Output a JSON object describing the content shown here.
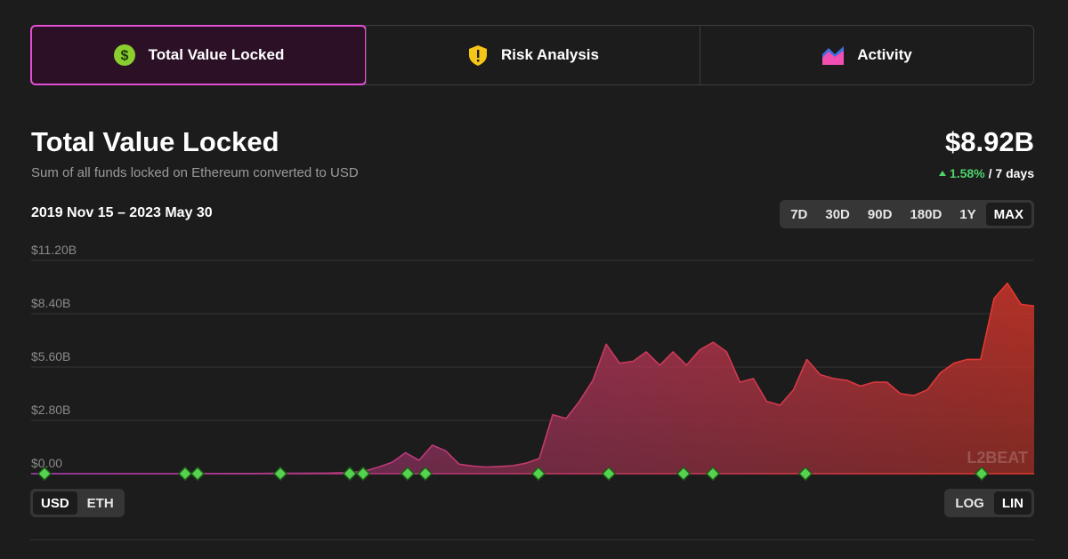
{
  "tabs": [
    "Total Value Locked",
    "Risk Analysis",
    "Activity"
  ],
  "active_tab": 0,
  "header": {
    "title": "Total Value Locked",
    "subtitle": "Sum of all funds locked on Ethereum converted to USD",
    "value": "$8.92B",
    "change": "1.58%",
    "change_period": "/ 7 days",
    "date_range": "2019 Nov 15 – 2023 May 30"
  },
  "range_options": [
    "7D",
    "30D",
    "90D",
    "180D",
    "1Y",
    "MAX"
  ],
  "range_selected": 5,
  "unit_options": [
    "USD",
    "ETH"
  ],
  "unit_selected": 0,
  "scale_options": [
    "LOG",
    "LIN"
  ],
  "scale_selected": 1,
  "chart_data": {
    "type": "area",
    "values": [
      0,
      0,
      0,
      0,
      0,
      0,
      0,
      0,
      0,
      0,
      0,
      0,
      0.01,
      0.01,
      0.01,
      0.01,
      0.01,
      0.01,
      0.02,
      0.02,
      0.02,
      0.03,
      0.03,
      0.04,
      0.06,
      0.15,
      0.35,
      0.6,
      1.1,
      0.7,
      1.5,
      1.2,
      0.5,
      0.4,
      0.35,
      0.38,
      0.42,
      0.55,
      0.8,
      3.1,
      2.9,
      3.8,
      4.9,
      6.8,
      5.8,
      5.9,
      6.4,
      5.7,
      6.4,
      5.7,
      6.5,
      6.9,
      6.4,
      4.8,
      5.0,
      3.8,
      3.6,
      4.4,
      6.0,
      5.2,
      5.0,
      4.9,
      4.6,
      4.8,
      4.8,
      4.2,
      4.1,
      4.4,
      5.3,
      5.8,
      6.0,
      6.0,
      9.2,
      10.0,
      8.9,
      8.8
    ],
    "ylim": [
      0,
      11.2
    ],
    "yticks": [
      {
        "value": 0,
        "label": "$0.00"
      },
      {
        "value": 2.8,
        "label": "$2.80B"
      },
      {
        "value": 5.6,
        "label": "$5.60B"
      },
      {
        "value": 8.4,
        "label": "$8.40B"
      },
      {
        "value": 11.2,
        "label": "$11.20B"
      }
    ],
    "grid": true,
    "color_start": "#a23aa9",
    "color_end": "#e6382a",
    "watermark": "L2BEAT"
  }
}
